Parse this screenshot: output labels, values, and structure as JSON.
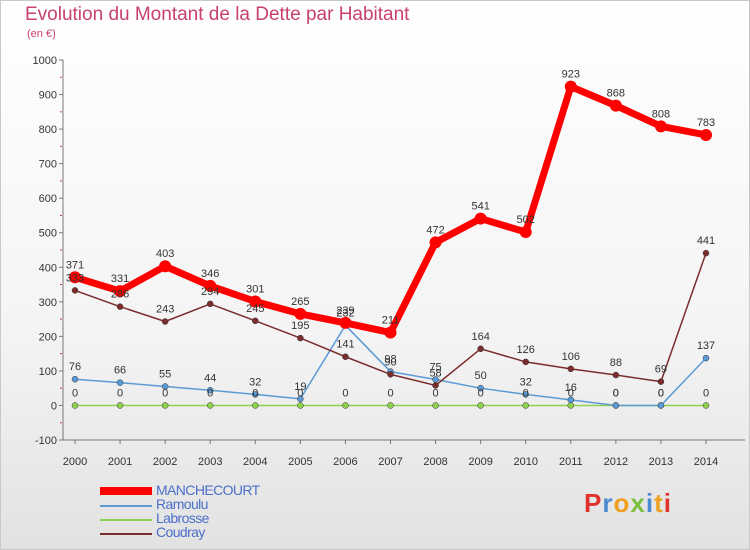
{
  "title": "Evolution du Montant de la Dette par Habitant",
  "subtitle": "(en €)",
  "logo_text": "Proxiti",
  "colors": {
    "title": "#c8416b",
    "legend_text": "#4a6fc8",
    "logo_letters": [
      "#e0332d",
      "#4a8ad0",
      "#f0a020",
      "#7cc040",
      "#4a8ad0",
      "#f0a020",
      "#e0332d"
    ]
  },
  "chart_data": {
    "type": "line",
    "categories": [
      "2000",
      "2001",
      "2002",
      "2003",
      "2004",
      "2005",
      "2006",
      "2007",
      "2008",
      "2009",
      "2010",
      "2011",
      "2012",
      "2013",
      "2014"
    ],
    "ylim": [
      -100,
      1000
    ],
    "yticks": [
      "-100",
      "0",
      "100",
      "200",
      "300",
      "400",
      "500",
      "600",
      "700",
      "800",
      "900",
      "1000"
    ],
    "xlabel": "",
    "ylabel": "",
    "grid": false,
    "legend_position": "bottom-left",
    "series": [
      {
        "name": "MANCHECOURT",
        "color": "#ff0000",
        "values": [
          371,
          331,
          403,
          346,
          301,
          265,
          239,
          211,
          472,
          541,
          502,
          923,
          868,
          808,
          783
        ],
        "labels": [
          "371",
          "331",
          "403",
          "346",
          "301",
          "265",
          "239",
          "211",
          "472",
          "541",
          "502",
          "923",
          "868",
          "808",
          "783"
        ]
      },
      {
        "name": "Ramoulu",
        "color": "#5b9bd5",
        "values": [
          76,
          66,
          55,
          44,
          32,
          19,
          232,
          98,
          75,
          50,
          32,
          16,
          0,
          0,
          137
        ],
        "labels": [
          "76",
          "66",
          "55",
          "44",
          "32",
          "19",
          "232",
          "98",
          "75",
          "50",
          "32",
          "16",
          "0",
          "0",
          "137"
        ]
      },
      {
        "name": "Labrosse",
        "color": "#8fd14f",
        "values": [
          0,
          0,
          0,
          0,
          0,
          0,
          0,
          0,
          0,
          0,
          0,
          0,
          0,
          0,
          0
        ],
        "labels": [
          "0",
          "0",
          "0",
          "0",
          "0",
          "0",
          "0",
          "0",
          "0",
          "0",
          "0",
          "0",
          "0",
          "0",
          "0"
        ]
      },
      {
        "name": "Coudray",
        "color": "#7b2c2c",
        "values": [
          333,
          286,
          243,
          294,
          245,
          195,
          141,
          90,
          58,
          164,
          126,
          106,
          88,
          69,
          441
        ],
        "labels": [
          "333",
          "286",
          "243",
          "294",
          "245",
          "195",
          "141",
          "90",
          "58",
          "164",
          "126",
          "106",
          "88",
          "69",
          "441"
        ]
      }
    ]
  }
}
